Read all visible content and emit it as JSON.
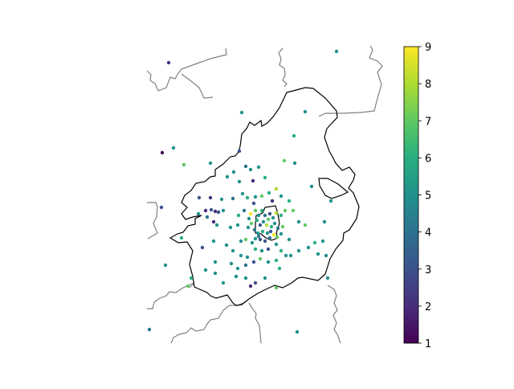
{
  "colorbar": {
    "min": 1,
    "max": 9,
    "ticks": [
      "1",
      "2",
      "3",
      "4",
      "5",
      "6",
      "7",
      "8",
      "9"
    ],
    "colormap": "viridis"
  },
  "colors": {
    "inner_boundary": "#000000",
    "outer_boundary": "#808080",
    "background": "#ffffff"
  },
  "points_visible": true
}
